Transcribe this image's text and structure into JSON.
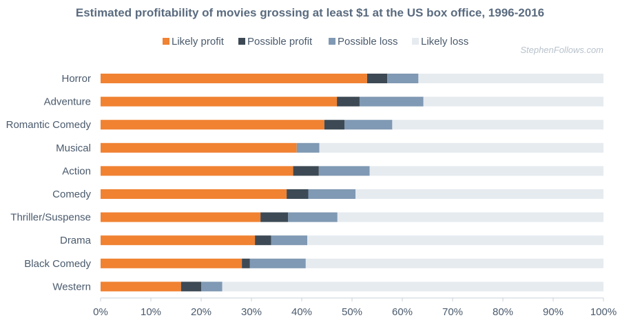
{
  "watermark": "StephenFollows.com",
  "chart_data": {
    "type": "bar",
    "orientation": "horizontal",
    "stacked": true,
    "title": "Estimated profitability of movies grossing at least $1 at the US box office, 1996-2016",
    "xlabel": "",
    "ylabel": "",
    "xlim": [
      0,
      100
    ],
    "x_ticks": [
      "0%",
      "10%",
      "20%",
      "30%",
      "40%",
      "50%",
      "60%",
      "70%",
      "80%",
      "90%",
      "100%"
    ],
    "grid": false,
    "legend_position": "top",
    "categories": [
      "Horror",
      "Adventure",
      "Romantic Comedy",
      "Musical",
      "Action",
      "Comedy",
      "Thriller/Suspense",
      "Drama",
      "Black Comedy",
      "Western"
    ],
    "series": [
      {
        "name": "Likely profit",
        "color": "#f08232",
        "values": [
          53,
          47,
          44.5,
          39,
          38.3,
          37,
          31.8,
          30.7,
          28.1,
          16
        ]
      },
      {
        "name": "Possible profit",
        "color": "#3d4a55",
        "values": [
          4,
          4.5,
          4,
          0,
          5.1,
          4.3,
          5.5,
          3.2,
          1.6,
          4
        ]
      },
      {
        "name": "Possible loss",
        "color": "#8099b4",
        "values": [
          6.2,
          12.7,
          9.5,
          4.5,
          10.1,
          9.4,
          9.8,
          7.2,
          11.1,
          4.2
        ]
      },
      {
        "name": "Likely loss",
        "color": "#e6ebf0",
        "values": [
          36.8,
          35.8,
          42,
          56.5,
          46.5,
          49.3,
          52.9,
          58.9,
          59.2,
          75.8
        ]
      }
    ]
  }
}
